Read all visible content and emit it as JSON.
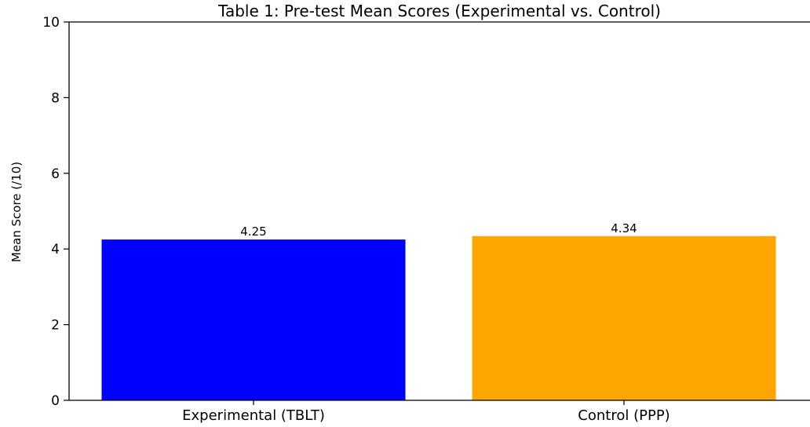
{
  "chart_data": {
    "type": "bar",
    "title": "Table 1: Pre-test Mean Scores (Experimental vs. Control)",
    "xlabel": "",
    "ylabel": "Mean Score (/10)",
    "ylim": [
      0,
      10
    ],
    "yticks": [
      0,
      2,
      4,
      6,
      8,
      10
    ],
    "categories": [
      "Experimental (TBLT)",
      "Control (PPP)"
    ],
    "values": [
      4.25,
      4.34
    ],
    "value_labels": [
      "4.25",
      "4.34"
    ],
    "colors": [
      "#0000ff",
      "#ffa500"
    ],
    "grid": false,
    "legend": "none"
  }
}
